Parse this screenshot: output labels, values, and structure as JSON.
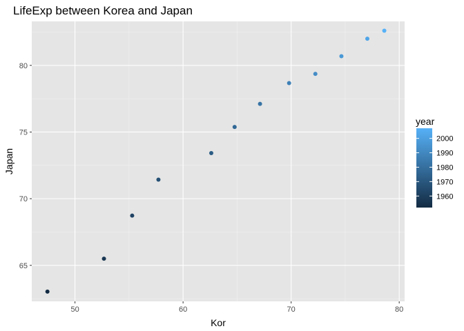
{
  "chart_data": {
    "type": "scatter",
    "title": "LifeExp between Korea and Japan",
    "xlabel": "Kor",
    "ylabel": "Japan",
    "xlim": [
      46,
      80.5
    ],
    "ylim": [
      62.3,
      83.3
    ],
    "xticks": [
      50,
      60,
      70,
      80
    ],
    "yticks": [
      65,
      70,
      75,
      80
    ],
    "grid": true,
    "legend": {
      "title": "year",
      "placement": "right",
      "type": "colorbar",
      "range": [
        1952,
        2007
      ],
      "breaks": [
        1960,
        1970,
        1980,
        1990,
        2000
      ],
      "color_low": "#132b43",
      "color_high": "#56b1f7"
    },
    "points": [
      {
        "x": 47.45,
        "y": 63.03,
        "year": 1952
      },
      {
        "x": 52.68,
        "y": 65.5,
        "year": 1957
      },
      {
        "x": 55.29,
        "y": 68.73,
        "year": 1962
      },
      {
        "x": 57.72,
        "y": 71.43,
        "year": 1967
      },
      {
        "x": 62.61,
        "y": 73.42,
        "year": 1972
      },
      {
        "x": 64.77,
        "y": 75.38,
        "year": 1977
      },
      {
        "x": 67.12,
        "y": 77.11,
        "year": 1982
      },
      {
        "x": 69.81,
        "y": 78.67,
        "year": 1987
      },
      {
        "x": 72.24,
        "y": 79.36,
        "year": 1992
      },
      {
        "x": 74.65,
        "y": 80.69,
        "year": 1997
      },
      {
        "x": 77.05,
        "y": 82.0,
        "year": 2002
      },
      {
        "x": 78.62,
        "y": 82.6,
        "year": 2007
      }
    ]
  }
}
